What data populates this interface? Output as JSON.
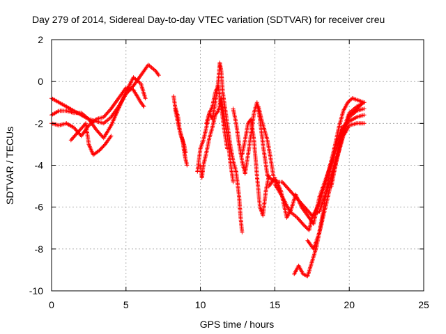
{
  "chart_data": {
    "type": "scatter",
    "title": "Day 279 of 2014, Sidereal Day-to-day VTEC variation (SDTVAR) for receiver creu",
    "xlabel": "GPS time / hours",
    "ylabel": "SDTVAR / TECUs",
    "xlim": [
      0,
      25
    ],
    "ylim": [
      -10,
      2
    ],
    "xticks": [
      "0",
      "5",
      "10",
      "15",
      "20",
      "25"
    ],
    "yticks": [
      "-10",
      "-8",
      "-6",
      "-4",
      "-2",
      "0",
      "2"
    ],
    "grid": true,
    "marker": "+",
    "color": "#ff0000",
    "tracks": [
      {
        "points": [
          [
            0,
            -0.8
          ],
          [
            0.5,
            -1.0
          ],
          [
            1.0,
            -1.2
          ],
          [
            1.5,
            -1.4
          ],
          [
            2.0,
            -1.6
          ],
          [
            2.5,
            -1.8
          ],
          [
            3.0,
            -1.9
          ],
          [
            3.5,
            -2.0
          ],
          [
            4.0,
            -1.7
          ],
          [
            4.5,
            -1.2
          ],
          [
            5.0,
            -0.6
          ],
          [
            5.5,
            -0.2
          ],
          [
            6.0,
            0.3
          ],
          [
            6.5,
            0.8
          ],
          [
            7.0,
            0.5
          ],
          [
            7.2,
            0.3
          ]
        ]
      },
      {
        "points": [
          [
            0,
            -1.6
          ],
          [
            0.5,
            -1.4
          ],
          [
            1.0,
            -1.4
          ],
          [
            1.5,
            -1.5
          ],
          [
            2.0,
            -1.5
          ],
          [
            2.5,
            -1.8
          ],
          [
            3.0,
            -2.3
          ],
          [
            3.5,
            -2.7
          ],
          [
            4.0,
            -2.1
          ],
          [
            4.5,
            -1.3
          ],
          [
            5.0,
            -0.5
          ],
          [
            5.5,
            0.2
          ],
          [
            6.0,
            -0.1
          ],
          [
            6.3,
            -0.8
          ]
        ]
      },
      {
        "points": [
          [
            0,
            -2.0
          ],
          [
            0.5,
            -2.1
          ],
          [
            1.0,
            -2.0
          ],
          [
            1.5,
            -2.2
          ],
          [
            2.0,
            -2.6
          ],
          [
            2.5,
            -2.1
          ],
          [
            3.0,
            -1.8
          ],
          [
            3.5,
            -1.7
          ],
          [
            4.0,
            -1.3
          ],
          [
            4.5,
            -0.8
          ],
          [
            5.0,
            -0.3
          ],
          [
            5.5,
            -0.4
          ],
          [
            6.0,
            -1.0
          ],
          [
            6.2,
            -1.2
          ]
        ]
      },
      {
        "points": [
          [
            1.3,
            -2.8
          ],
          [
            1.8,
            -2.4
          ],
          [
            2.3,
            -2.0
          ],
          [
            2.5,
            -3.0
          ],
          [
            2.8,
            -3.5
          ],
          [
            3.2,
            -3.3
          ],
          [
            3.6,
            -3.0
          ],
          [
            4.0,
            -2.6
          ]
        ]
      },
      {
        "points": [
          [
            8.2,
            -0.7
          ],
          [
            8.3,
            -1.2
          ],
          [
            8.5,
            -1.7
          ],
          [
            8.6,
            -2.3
          ],
          [
            8.8,
            -2.8
          ],
          [
            8.9,
            -3.3
          ],
          [
            9.0,
            -3.7
          ],
          [
            9.1,
            -4.0
          ]
        ]
      },
      {
        "points": [
          [
            8.3,
            -1.3
          ],
          [
            8.5,
            -2.0
          ],
          [
            8.7,
            -2.6
          ],
          [
            8.9,
            -3.0
          ],
          [
            9.0,
            -3.4
          ]
        ]
      },
      {
        "points": [
          [
            9.8,
            -4.3
          ],
          [
            10.0,
            -3.2
          ],
          [
            10.2,
            -2.8
          ],
          [
            10.4,
            -2.2
          ],
          [
            10.6,
            -1.5
          ],
          [
            10.8,
            -1.8
          ],
          [
            11.0,
            -1.0
          ],
          [
            11.2,
            0.0
          ],
          [
            11.3,
            0.9
          ],
          [
            11.4,
            0.5
          ],
          [
            11.5,
            -0.5
          ],
          [
            11.6,
            -1.0
          ],
          [
            11.8,
            -2.0
          ],
          [
            12.0,
            -3.0
          ],
          [
            12.2,
            -3.8
          ],
          [
            12.4,
            -4.3
          ],
          [
            12.6,
            -5.5
          ],
          [
            12.7,
            -6.5
          ],
          [
            12.8,
            -7.2
          ]
        ]
      },
      {
        "points": [
          [
            10.0,
            -4.0
          ],
          [
            10.1,
            -4.6
          ],
          [
            10.2,
            -4.0
          ],
          [
            10.4,
            -3.4
          ],
          [
            10.6,
            -2.7
          ],
          [
            10.8,
            -2.2
          ],
          [
            11.0,
            -1.6
          ],
          [
            11.2,
            -1.4
          ],
          [
            11.4,
            -0.8
          ],
          [
            11.6,
            -1.8
          ],
          [
            11.8,
            -2.5
          ],
          [
            12.0,
            -3.8
          ],
          [
            12.2,
            -4.8
          ]
        ]
      },
      {
        "points": [
          [
            10.4,
            -2.0
          ],
          [
            10.6,
            -1.5
          ],
          [
            10.8,
            -1.2
          ],
          [
            11.0,
            -0.5
          ],
          [
            11.2,
            -0.2
          ],
          [
            11.4,
            -1.2
          ],
          [
            11.6,
            -2.3
          ],
          [
            11.8,
            -3.2
          ]
        ]
      },
      {
        "points": [
          [
            12.2,
            -1.3
          ],
          [
            12.4,
            -2.0
          ],
          [
            12.6,
            -3.0
          ],
          [
            12.8,
            -3.8
          ],
          [
            13.0,
            -4.4
          ],
          [
            13.2,
            -3.5
          ],
          [
            13.4,
            -2.5
          ],
          [
            13.6,
            -1.5
          ],
          [
            13.8,
            -1.0
          ],
          [
            14.0,
            -1.8
          ],
          [
            14.2,
            -3.0
          ],
          [
            14.4,
            -4.0
          ],
          [
            14.5,
            -4.5
          ]
        ]
      },
      {
        "points": [
          [
            12.8,
            -3.5
          ],
          [
            13.0,
            -2.8
          ],
          [
            13.2,
            -2.0
          ],
          [
            13.4,
            -1.8
          ],
          [
            13.6,
            -2.8
          ],
          [
            13.8,
            -4.5
          ],
          [
            14.0,
            -6.0
          ],
          [
            14.2,
            -6.4
          ],
          [
            14.4,
            -5.2
          ],
          [
            14.6,
            -4.5
          ]
        ]
      },
      {
        "points": [
          [
            13.9,
            -1.2
          ],
          [
            14.1,
            -1.8
          ],
          [
            14.3,
            -2.3
          ],
          [
            14.5,
            -2.8
          ],
          [
            14.7,
            -3.6
          ],
          [
            14.9,
            -4.5
          ]
        ]
      },
      {
        "points": [
          [
            14.5,
            -4.5
          ],
          [
            15.0,
            -4.8
          ],
          [
            15.5,
            -4.8
          ],
          [
            16.0,
            -5.2
          ],
          [
            16.5,
            -5.6
          ],
          [
            17.0,
            -6.0
          ],
          [
            17.5,
            -6.4
          ],
          [
            18.0,
            -6.2
          ],
          [
            18.5,
            -5.2
          ],
          [
            19.0,
            -4.0
          ],
          [
            19.5,
            -2.5
          ],
          [
            20.0,
            -1.5
          ],
          [
            20.5,
            -1.2
          ],
          [
            21.0,
            -1.0
          ]
        ]
      },
      {
        "points": [
          [
            14.6,
            -5.0
          ],
          [
            15.0,
            -4.6
          ],
          [
            15.4,
            -5.2
          ],
          [
            15.8,
            -6.5
          ],
          [
            16.1,
            -6.1
          ],
          [
            16.4,
            -5.4
          ],
          [
            16.8,
            -6.0
          ],
          [
            17.2,
            -6.4
          ],
          [
            17.6,
            -6.8
          ],
          [
            18.0,
            -5.5
          ],
          [
            18.5,
            -4.5
          ],
          [
            19.0,
            -3.5
          ],
          [
            19.5,
            -2.4
          ],
          [
            20.0,
            -1.7
          ],
          [
            20.5,
            -1.4
          ],
          [
            21.0,
            -1.3
          ]
        ]
      },
      {
        "points": [
          [
            15.0,
            -4.9
          ],
          [
            15.5,
            -5.5
          ],
          [
            16.0,
            -6.2
          ],
          [
            16.5,
            -6.5
          ],
          [
            17.0,
            -6.9
          ],
          [
            17.3,
            -7.1
          ],
          [
            17.5,
            -6.5
          ],
          [
            18.0,
            -5.8
          ],
          [
            18.5,
            -4.6
          ],
          [
            19.0,
            -3.2
          ],
          [
            19.5,
            -2.2
          ],
          [
            20.0,
            -1.9
          ],
          [
            20.5,
            -1.7
          ],
          [
            21.0,
            -1.6
          ]
        ]
      },
      {
        "points": [
          [
            16.3,
            -9.2
          ],
          [
            16.6,
            -8.8
          ],
          [
            16.9,
            -9.2
          ],
          [
            17.2,
            -9.3
          ],
          [
            17.5,
            -8.6
          ],
          [
            17.8,
            -7.9
          ],
          [
            18.1,
            -6.8
          ],
          [
            18.4,
            -5.5
          ],
          [
            18.7,
            -4.3
          ],
          [
            19.0,
            -3.2
          ],
          [
            19.3,
            -2.2
          ],
          [
            19.6,
            -1.4
          ],
          [
            19.9,
            -1.0
          ],
          [
            20.2,
            -0.8
          ],
          [
            20.6,
            -0.9
          ],
          [
            21.0,
            -1.0
          ]
        ]
      },
      {
        "points": [
          [
            17.2,
            -7.6
          ],
          [
            17.6,
            -8.0
          ],
          [
            18.0,
            -7.2
          ],
          [
            18.4,
            -6.0
          ],
          [
            18.8,
            -4.8
          ],
          [
            19.2,
            -3.6
          ],
          [
            19.6,
            -2.6
          ],
          [
            20.0,
            -2.1
          ],
          [
            20.5,
            -2.0
          ],
          [
            21.0,
            -2.0
          ]
        ]
      },
      {
        "points": [
          [
            18.8,
            -5.0
          ],
          [
            19.1,
            -3.9
          ],
          [
            19.4,
            -3.0
          ],
          [
            19.7,
            -2.3
          ],
          [
            20.0,
            -1.6
          ],
          [
            20.4,
            -1.4
          ],
          [
            20.8,
            -1.1
          ]
        ]
      }
    ]
  }
}
